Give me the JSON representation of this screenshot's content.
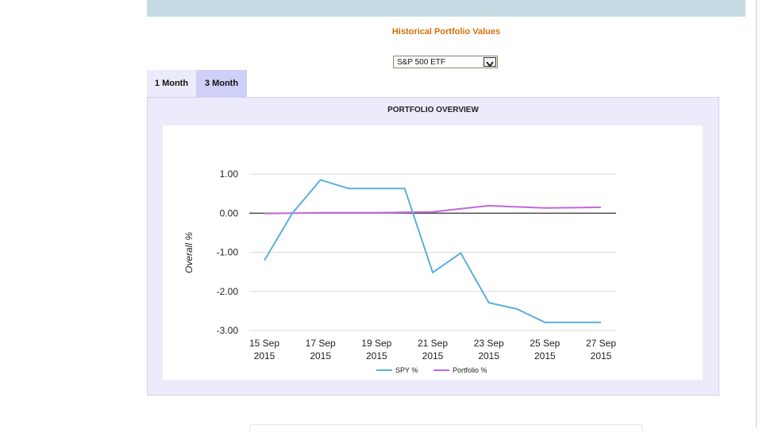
{
  "page": {
    "title": "Historical Portfolio Values"
  },
  "fund_select": {
    "value": "S&P 500 ETF"
  },
  "tabs": [
    {
      "label": "1 Month"
    },
    {
      "label": "3 Month"
    }
  ],
  "colors": {
    "title_orange": "#d4700a",
    "top_bar": "#c5dce5",
    "panel_bg": "#ebebfb",
    "tab_active": "#cfcff7",
    "spy_line": "#5aafdc",
    "portfolio_line": "#c167e0"
  },
  "chart_data": {
    "type": "line",
    "title": "PORTFOLIO OVERVIEW",
    "xlabel": "",
    "ylabel": "Overall %",
    "ylim": [
      -3.0,
      1.0
    ],
    "yticks": [
      "1.00",
      "0.00",
      "-1.00",
      "-2.00",
      "-3.00"
    ],
    "x": [
      "15 Sep 2015",
      "16 Sep 2015",
      "17 Sep 2015",
      "18 Sep 2015",
      "19 Sep 2015",
      "20 Sep 2015",
      "21 Sep 2015",
      "22 Sep 2015",
      "23 Sep 2015",
      "24 Sep 2015",
      "25 Sep 2015",
      "26 Sep 2015",
      "27 Sep 2015"
    ],
    "xtick_labels": [
      {
        "line1": "15 Sep",
        "line2": "2015",
        "index": 0
      },
      {
        "line1": "17 Sep",
        "line2": "2015",
        "index": 2
      },
      {
        "line1": "19 Sep",
        "line2": "2015",
        "index": 4
      },
      {
        "line1": "21 Sep",
        "line2": "2015",
        "index": 6
      },
      {
        "line1": "23 Sep",
        "line2": "2015",
        "index": 8
      },
      {
        "line1": "25 Sep",
        "line2": "2015",
        "index": 10
      },
      {
        "line1": "27 Sep",
        "line2": "2015",
        "index": 12
      }
    ],
    "series": [
      {
        "name": "SPY %",
        "color": "#5aafdc",
        "values": [
          -1.21,
          0.0,
          0.85,
          0.63,
          0.63,
          0.63,
          -1.52,
          -1.02,
          -2.29,
          -2.45,
          -2.79,
          -2.79,
          -2.79
        ]
      },
      {
        "name": "Portfolio %",
        "color": "#c167e0",
        "values": [
          -0.01,
          0.0,
          0.01,
          0.01,
          0.01,
          0.02,
          0.03,
          0.11,
          0.19,
          0.16,
          0.13,
          0.14,
          0.15
        ]
      }
    ],
    "grid": true,
    "legend": "bottom-center"
  }
}
